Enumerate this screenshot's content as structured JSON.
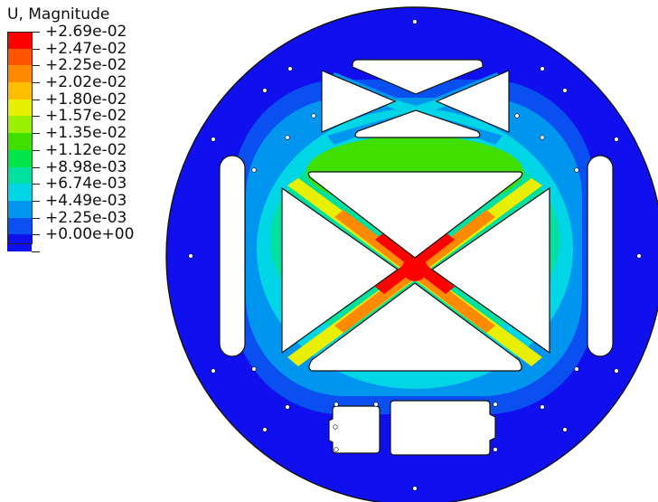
{
  "legend": {
    "title": "U, Magnitude",
    "entries": [
      {
        "label": "+2.69e-02",
        "color": "#ff0000"
      },
      {
        "label": "+2.47e-02",
        "color": "#ff5500"
      },
      {
        "label": "+2.25e-02",
        "color": "#ff8a00"
      },
      {
        "label": "+2.02e-02",
        "color": "#ffbf00"
      },
      {
        "label": "+1.80e-02",
        "color": "#e8f000"
      },
      {
        "label": "+1.57e-02",
        "color": "#9af000"
      },
      {
        "label": "+1.35e-02",
        "color": "#3fe000"
      },
      {
        "label": "+1.12e-02",
        "color": "#00e64a"
      },
      {
        "label": "+8.98e-03",
        "color": "#00e0a0"
      },
      {
        "label": "+6.74e-03",
        "color": "#00d6e6"
      },
      {
        "label": "+4.49e-03",
        "color": "#0096f0"
      },
      {
        "label": "+2.25e-03",
        "color": "#0a50f0"
      },
      {
        "label": "+0.00e+00",
        "color": "#1010ee"
      }
    ]
  },
  "plot_colors": {
    "outer": "#1010ee",
    "band1": "#0a50f0",
    "band2": "#0096f0",
    "band3": "#00d6e6",
    "band4": "#00e0a0",
    "band5": "#3fe000",
    "peak": "#ff0000",
    "high": "#ff8a00",
    "mid": "#e8f000",
    "cutout": "#ffffff",
    "edge": "#111111"
  }
}
